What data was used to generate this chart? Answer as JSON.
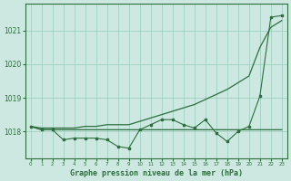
{
  "x": [
    0,
    1,
    2,
    3,
    4,
    5,
    6,
    7,
    8,
    9,
    10,
    11,
    12,
    13,
    14,
    15,
    16,
    17,
    18,
    19,
    20,
    21,
    22,
    23
  ],
  "line_flat": [
    1018.15,
    1018.05,
    1018.05,
    1018.05,
    1018.05,
    1018.05,
    1018.05,
    1018.05,
    1018.05,
    1018.05,
    1018.05,
    1018.05,
    1018.05,
    1018.05,
    1018.05,
    1018.05,
    1018.05,
    1018.05,
    1018.05,
    1018.05,
    1018.05,
    1018.05,
    1018.05,
    1018.05
  ],
  "line_smooth": [
    1018.15,
    1018.1,
    1018.1,
    1018.1,
    1018.1,
    1018.15,
    1018.15,
    1018.2,
    1018.2,
    1018.2,
    1018.3,
    1018.4,
    1018.5,
    1018.6,
    1018.7,
    1018.8,
    1018.95,
    1019.1,
    1019.25,
    1019.45,
    1019.65,
    1020.5,
    1021.1,
    1021.3
  ],
  "line_jagged": [
    1018.15,
    1018.05,
    1018.05,
    1017.75,
    1017.8,
    1017.8,
    1017.8,
    1017.75,
    1017.55,
    1017.5,
    1018.05,
    1018.2,
    1018.35,
    1018.35,
    1018.2,
    1018.1,
    1018.35,
    1017.95,
    1017.7,
    1018.0,
    1018.15,
    1019.05,
    1021.4,
    1021.45
  ],
  "bg_color": "#cce8e0",
  "grid_color": "#99ccbb",
  "line_color": "#2d6e3e",
  "xlabel": "Graphe pression niveau de la mer (hPa)",
  "ylim": [
    1017.2,
    1021.8
  ],
  "yticks": [
    1018,
    1019,
    1020,
    1021
  ],
  "xticks": [
    0,
    1,
    2,
    3,
    4,
    5,
    6,
    7,
    8,
    9,
    10,
    11,
    12,
    13,
    14,
    15,
    16,
    17,
    18,
    19,
    20,
    21,
    22,
    23
  ]
}
